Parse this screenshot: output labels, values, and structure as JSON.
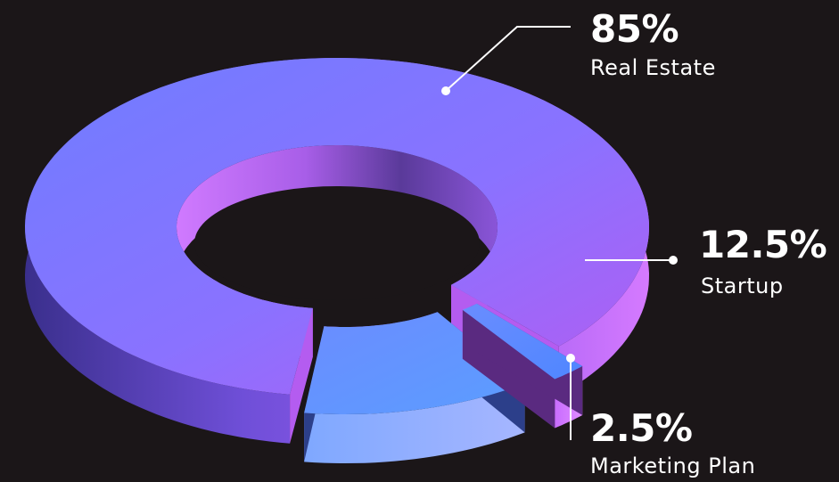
{
  "chart_data": {
    "type": "pie",
    "style": "3d-donut",
    "categories": [
      "Real Estate",
      "Startup",
      "Marketing Plan"
    ],
    "values": [
      85,
      12.5,
      2.5
    ],
    "value_labels": [
      "85%",
      "12.5%",
      "2.5%"
    ],
    "colors": [
      "#8a6cff",
      "#5f93ff",
      "#c86cff"
    ],
    "legend": "none"
  }
}
